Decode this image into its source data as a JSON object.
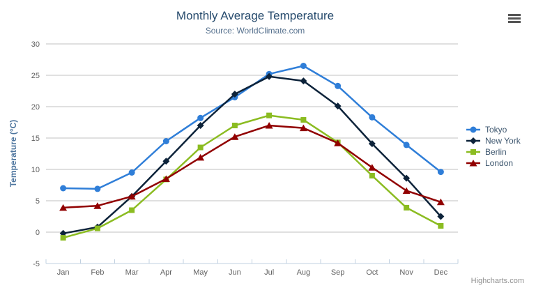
{
  "chart_data": {
    "type": "line",
    "title": "Monthly Average Temperature",
    "subtitle": "Source: WorldClimate.com",
    "xlabel": "",
    "ylabel": "Temperature (°C)",
    "ylim": [
      -5,
      30
    ],
    "ytick_step": 5,
    "grid": "horizontal",
    "legend_position": "right",
    "categories": [
      "Jan",
      "Feb",
      "Mar",
      "Apr",
      "May",
      "Jun",
      "Jul",
      "Aug",
      "Sep",
      "Oct",
      "Nov",
      "Dec"
    ],
    "series": [
      {
        "name": "Tokyo",
        "color": "#2f7ed8",
        "marker": "circle",
        "values": [
          7.0,
          6.9,
          9.5,
          14.5,
          18.2,
          21.5,
          25.2,
          26.5,
          23.3,
          18.3,
          13.9,
          9.6
        ]
      },
      {
        "name": "New York",
        "color": "#0d233a",
        "marker": "diamond",
        "values": [
          -0.2,
          0.8,
          5.7,
          11.3,
          17.0,
          22.0,
          24.8,
          24.1,
          20.1,
          14.1,
          8.6,
          2.5
        ]
      },
      {
        "name": "Berlin",
        "color": "#8bbc21",
        "marker": "square",
        "values": [
          -0.9,
          0.6,
          3.5,
          8.4,
          13.5,
          17.0,
          18.6,
          17.9,
          14.3,
          9.0,
          3.9,
          1.0
        ]
      },
      {
        "name": "London",
        "color": "#910000",
        "marker": "triangle-up",
        "values": [
          3.9,
          4.2,
          5.7,
          8.5,
          11.9,
          15.2,
          17.0,
          16.6,
          14.2,
          10.3,
          6.6,
          4.8
        ]
      }
    ]
  },
  "credits": {
    "label": "Highcharts.com"
  },
  "icons": {
    "menu": "hamburger-menu-icon"
  },
  "colors": {
    "title": "#274b6d",
    "subtitle": "#55708d",
    "axis_label": "#606060",
    "axis_title": "#4d759e",
    "grid": "#c0c0c0",
    "axis_line": "#c0d0e0",
    "legend_text": "#3e576f",
    "credits": "#909090",
    "menu_icon": "#555555",
    "background": "#ffffff"
  }
}
